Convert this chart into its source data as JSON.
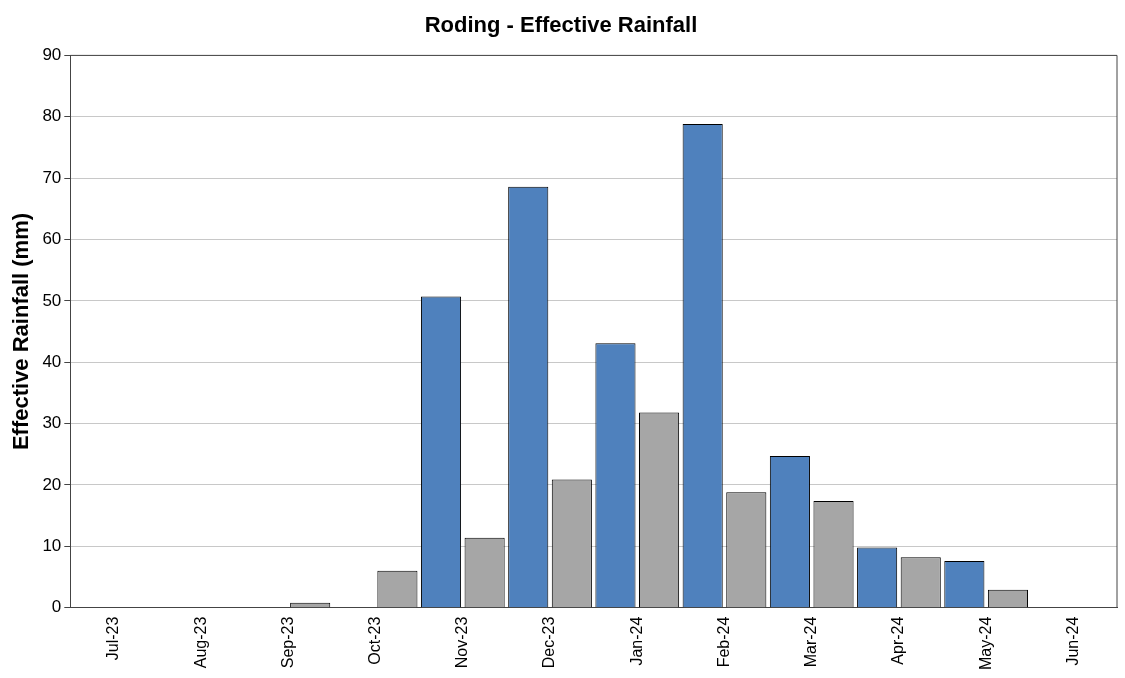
{
  "chart_data": {
    "type": "bar",
    "title": "Roding - Effective Rainfall",
    "ylabel": "Effective Rainfall (mm)",
    "categories": [
      "Jul-23",
      "Aug-23",
      "Sep-23",
      "Oct-23",
      "Nov-23",
      "Dec-23",
      "Jan-24",
      "Feb-24",
      "Mar-24",
      "Apr-24",
      "May-24",
      "Jun-24"
    ],
    "series": [
      {
        "color": "#4f81bd",
        "values": [
          0,
          0,
          0,
          0,
          50.7,
          68.6,
          43.1,
          78.8,
          24.7,
          9.8,
          7.6,
          0
        ]
      },
      {
        "color": "#a6a6a6",
        "values": [
          0,
          0,
          0.8,
          6.0,
          11.4,
          20.9,
          31.8,
          18.8,
          17.4,
          8.2,
          2.9,
          0
        ]
      }
    ],
    "ylim": [
      0,
      90
    ],
    "yticks": [
      0,
      10,
      20,
      30,
      40,
      50,
      60,
      70,
      80,
      90
    ],
    "grid": "y",
    "legend": false
  }
}
